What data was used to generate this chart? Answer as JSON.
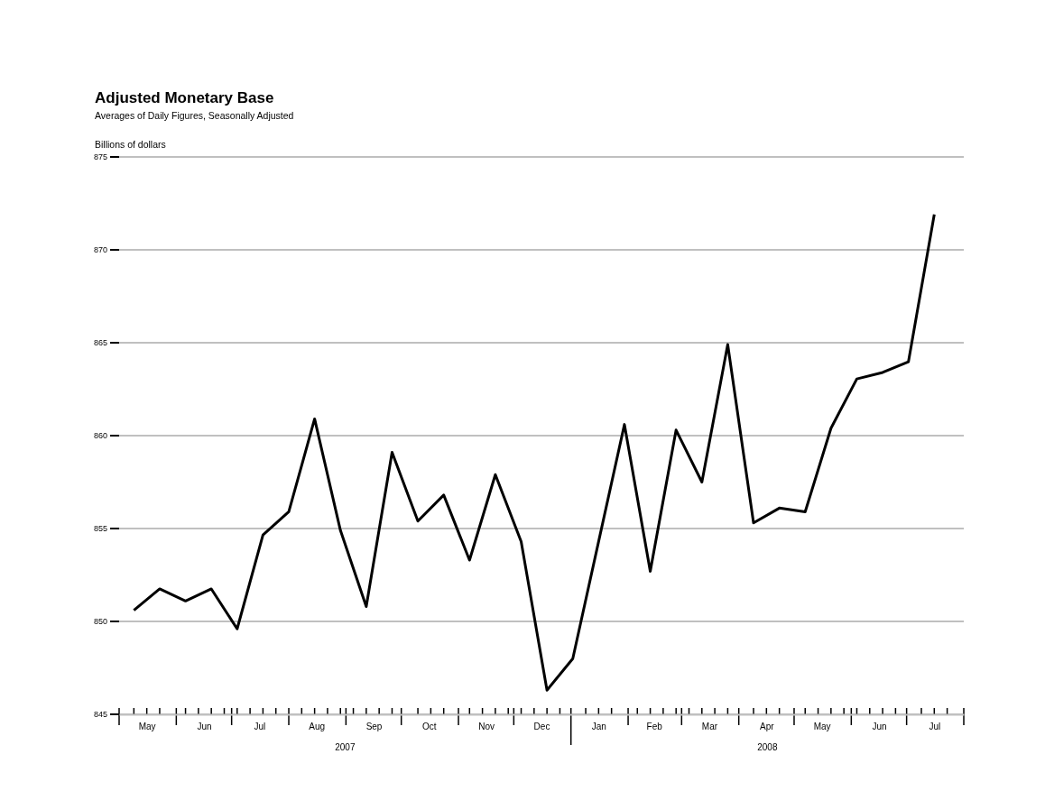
{
  "chart_data": {
    "type": "line",
    "title": "Adjusted Monetary Base",
    "subtitle": "Averages of Daily Figures, Seasonally Adjusted",
    "ylabel": "Billions of dollars",
    "x": [
      "2007-05-09",
      "2007-05-23",
      "2007-06-06",
      "2007-06-20",
      "2007-07-04",
      "2007-07-18",
      "2007-08-01",
      "2007-08-15",
      "2007-08-29",
      "2007-09-12",
      "2007-09-26",
      "2007-10-10",
      "2007-10-24",
      "2007-11-07",
      "2007-11-21",
      "2007-12-05",
      "2007-12-19",
      "2008-01-02",
      "2008-01-16",
      "2008-01-30",
      "2008-02-13",
      "2008-02-27",
      "2008-03-12",
      "2008-03-26",
      "2008-04-09",
      "2008-04-23",
      "2008-05-07",
      "2008-05-21",
      "2008-06-04",
      "2008-06-18",
      "2008-07-02",
      "2008-07-16"
    ],
    "series": [
      {
        "color": "#000000",
        "values": [
          850.6,
          851.75,
          851.1,
          851.75,
          849.6,
          854.65,
          855.9,
          860.9,
          854.9,
          850.8,
          859.1,
          855.4,
          856.8,
          853.3,
          857.9,
          854.3,
          846.3,
          848.0,
          854.3,
          860.6,
          852.7,
          860.3,
          857.5,
          864.9,
          855.3,
          856.1,
          855.9,
          860.4,
          863.05,
          863.4,
          863.98,
          871.9
        ]
      }
    ],
    "xlim": [
      "2007-05-01",
      "2008-08-01"
    ],
    "xticks": [
      {
        "value": "2007-05-16",
        "label": "May"
      },
      {
        "value": "2007-06-16",
        "label": "Jun"
      },
      {
        "value": "2007-07-16",
        "label": "Jul"
      },
      {
        "value": "2007-08-16",
        "label": "Aug"
      },
      {
        "value": "2007-09-16",
        "label": "Sep"
      },
      {
        "value": "2007-10-16",
        "label": "Oct"
      },
      {
        "value": "2007-11-16",
        "label": "Nov"
      },
      {
        "value": "2007-12-16",
        "label": "Dec"
      },
      {
        "value": "2008-01-16",
        "label": "Jan"
      },
      {
        "value": "2008-02-15",
        "label": "Feb"
      },
      {
        "value": "2008-03-16",
        "label": "Mar"
      },
      {
        "value": "2008-04-16",
        "label": "Apr"
      },
      {
        "value": "2008-05-16",
        "label": "May"
      },
      {
        "value": "2008-06-16",
        "label": "Jun"
      },
      {
        "value": "2008-07-16",
        "label": "Jul"
      }
    ],
    "annotations": [
      "2007",
      "2008"
    ],
    "ylim": [
      845,
      875
    ],
    "yticks": [
      845,
      850,
      855,
      860,
      865,
      870,
      875
    ],
    "grid": "y",
    "marker": "none",
    "line_style": "solid"
  }
}
